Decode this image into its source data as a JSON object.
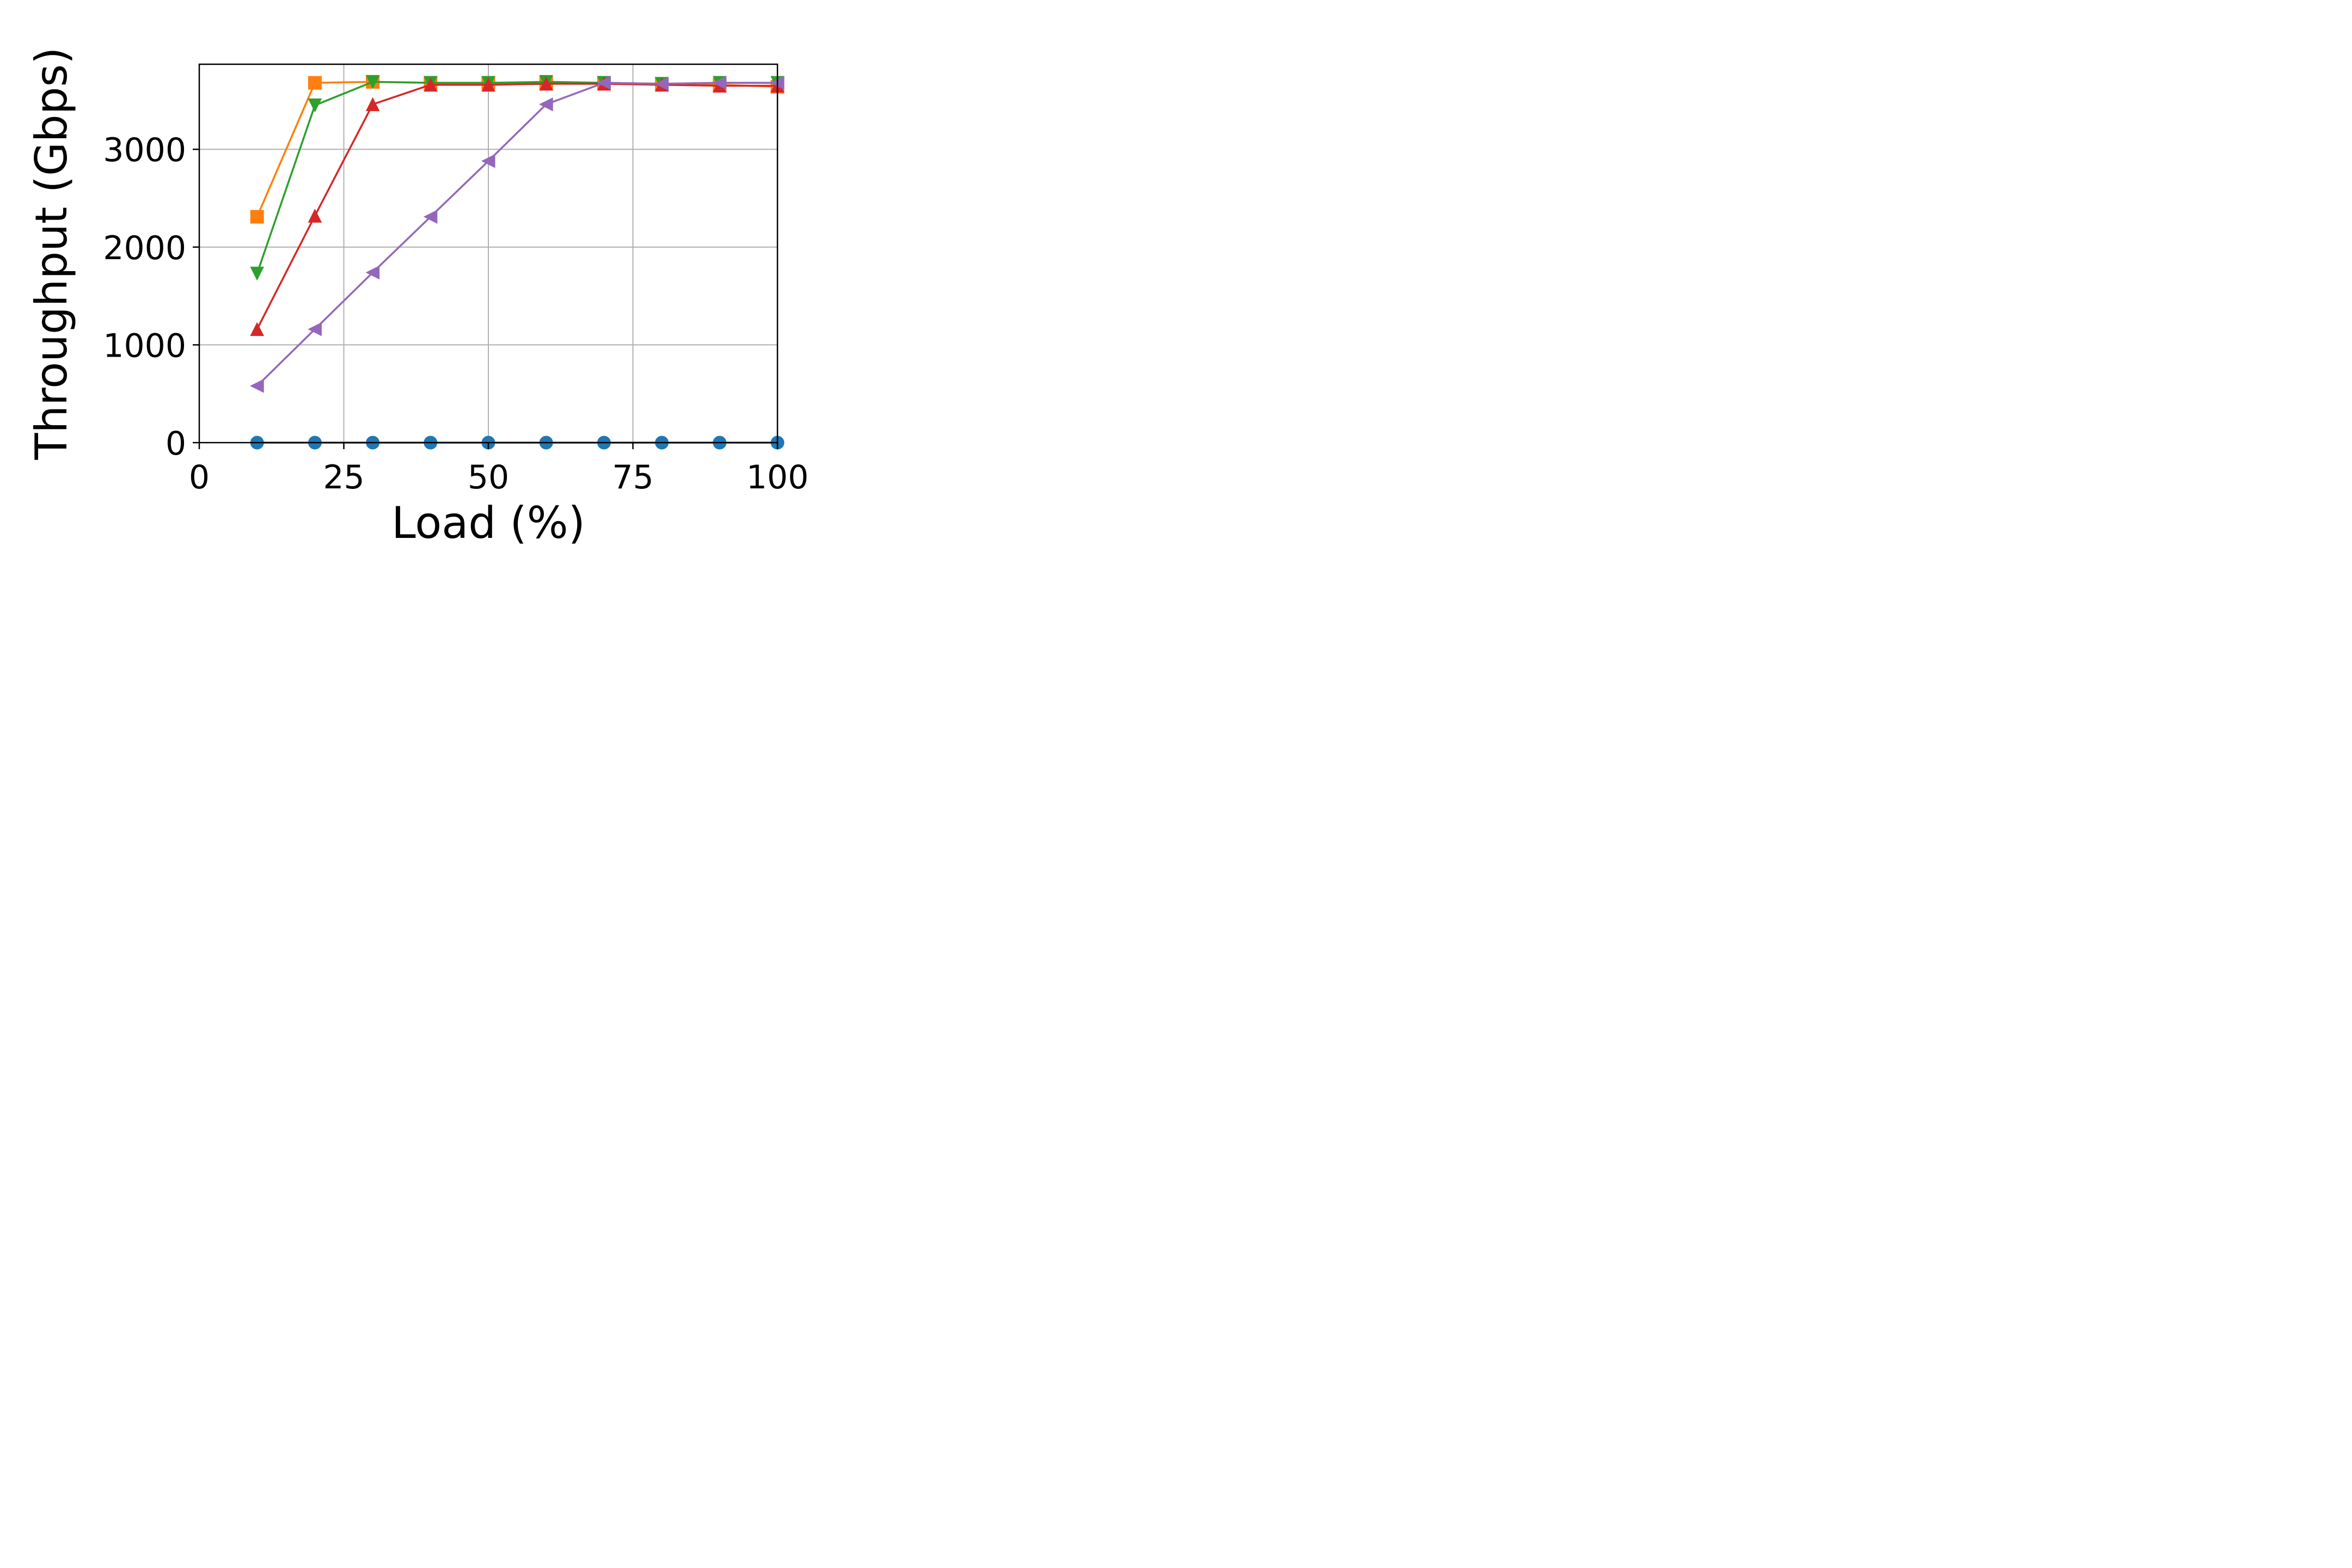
{
  "chart_data": {
    "type": "line",
    "title": "",
    "xlabel": "Load (%)",
    "ylabel": "Throughput (Gbps)",
    "xlim": [
      0,
      100
    ],
    "ylim": [
      0,
      3870
    ],
    "xticks": [
      0,
      25,
      50,
      75,
      100
    ],
    "yticks": [
      0,
      1000,
      2000,
      3000
    ],
    "grid": true,
    "x": [
      10,
      20,
      30,
      40,
      50,
      60,
      70,
      80,
      90,
      100
    ],
    "series": [
      {
        "color": "#1f77b4",
        "marker": "circle",
        "values": [
          0,
          0,
          0,
          0,
          0,
          0,
          0,
          0,
          0,
          0
        ]
      },
      {
        "color": "#ff7f0e",
        "marker": "square",
        "values": [
          2310,
          3680,
          3690,
          3680,
          3680,
          3680,
          3680,
          3670,
          3660,
          3640
        ]
      },
      {
        "color": "#2ca02c",
        "marker": "triangle-down",
        "values": [
          1730,
          3450,
          3690,
          3680,
          3680,
          3690,
          3680,
          3670,
          3680,
          3680
        ]
      },
      {
        "color": "#d62728",
        "marker": "triangle-up",
        "values": [
          1160,
          2320,
          3460,
          3660,
          3660,
          3670,
          3670,
          3660,
          3650,
          3650
        ]
      },
      {
        "color": "#9467bd",
        "marker": "triangle-left",
        "values": [
          580,
          1160,
          1740,
          2310,
          2880,
          3460,
          3680,
          3670,
          3680,
          3680
        ]
      }
    ]
  }
}
